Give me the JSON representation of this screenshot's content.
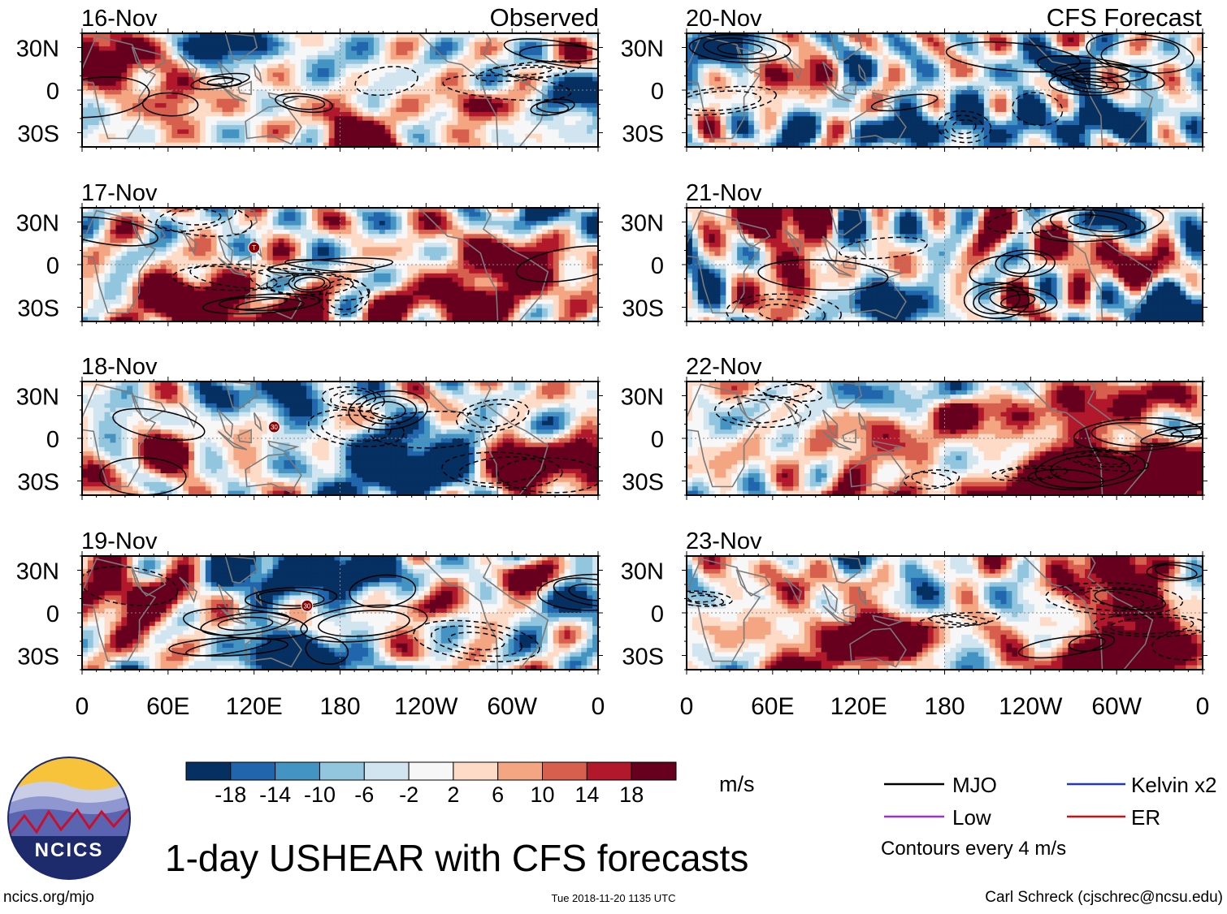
{
  "chart_data": {
    "type": "heatmap",
    "title": "1-day USHEAR with CFS forecasts",
    "variable": "USHEAR",
    "units": "m/s",
    "column_headers": [
      "Observed",
      "CFS Forecast"
    ],
    "panels": [
      {
        "date": "16-Nov",
        "kind": "observed"
      },
      {
        "date": "17-Nov",
        "kind": "observed",
        "storm_markers": [
          {
            "label": "T",
            "lon": 120,
            "lat": 12
          }
        ]
      },
      {
        "date": "18-Nov",
        "kind": "observed",
        "storm_markers": [
          {
            "label": "30",
            "lon": 134,
            "lat": 8
          }
        ]
      },
      {
        "date": "19-Nov",
        "kind": "observed",
        "storm_markers": [
          {
            "label": "30",
            "lon": 157,
            "lat": 5
          }
        ]
      },
      {
        "date": "20-Nov",
        "kind": "forecast"
      },
      {
        "date": "21-Nov",
        "kind": "forecast"
      },
      {
        "date": "22-Nov",
        "kind": "forecast"
      },
      {
        "date": "23-Nov",
        "kind": "forecast"
      }
    ],
    "x_ticks": [
      "0",
      "60E",
      "120E",
      "180",
      "120W",
      "60W",
      "0"
    ],
    "x_range_deg": [
      0,
      360
    ],
    "y_ticks": [
      "30N",
      "0",
      "30S"
    ],
    "y_range_deg": [
      -40,
      40
    ],
    "colorbar": {
      "labels": [
        "-18",
        "-14",
        "-10",
        "-6",
        "-2",
        "2",
        "6",
        "10",
        "14",
        "18"
      ],
      "colors": [
        "#053061",
        "#2166ac",
        "#4393c3",
        "#92c5de",
        "#d1e5f0",
        "#f7f7f7",
        "#fddbc7",
        "#f4a582",
        "#d6604d",
        "#b2182b",
        "#67001f"
      ]
    },
    "contour_legend": {
      "items": [
        {
          "label": "MJO",
          "color": "#000000"
        },
        {
          "label": "Kelvin x2",
          "color": "#2236c8"
        },
        {
          "label": "Low",
          "color": "#9b30e0"
        },
        {
          "label": "ER",
          "color": "#d01010"
        }
      ],
      "note": "Contours every 4 m/s"
    }
  },
  "logo_text": "NCICS",
  "footer": {
    "website": "ncics.org/mjo",
    "timestamp": "Tue 2018-11-20 1135 UTC",
    "author": "Carl Schreck (cjschrec@ncsu.edu)"
  }
}
